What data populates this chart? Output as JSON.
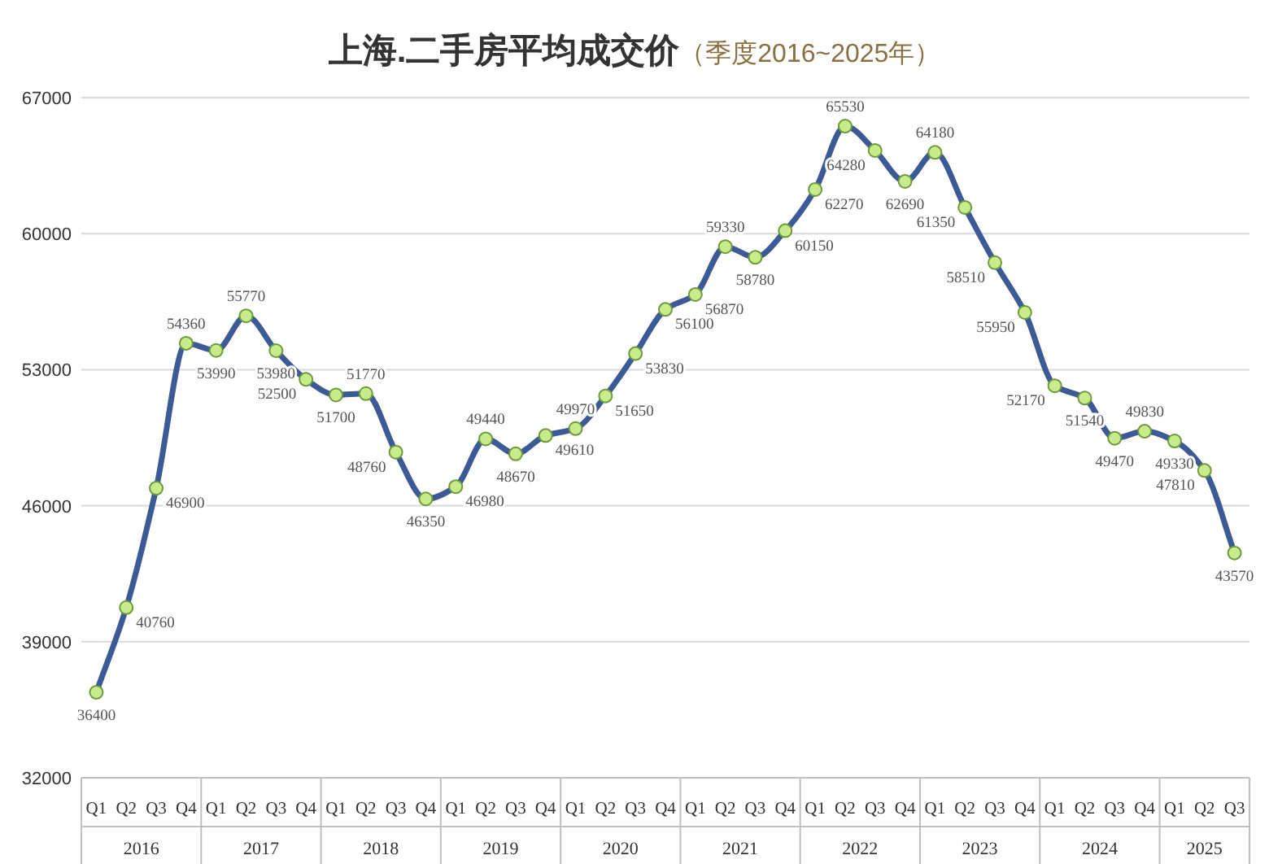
{
  "chart_data": {
    "type": "line",
    "title": "上海.二手房平均成交价",
    "subtitle": "（季度2016~2025年）",
    "categories": [
      "Q1",
      "Q2",
      "Q3",
      "Q4",
      "Q1",
      "Q2",
      "Q3",
      "Q4",
      "Q1",
      "Q2",
      "Q3",
      "Q4",
      "Q1",
      "Q2",
      "Q3",
      "Q4",
      "Q1",
      "Q2",
      "Q3",
      "Q4",
      "Q1",
      "Q2",
      "Q3",
      "Q4",
      "Q1",
      "Q2",
      "Q3",
      "Q4",
      "Q1",
      "Q2",
      "Q3",
      "Q4",
      "Q1",
      "Q2",
      "Q3",
      "Q4",
      "Q1",
      "Q2",
      "Q3"
    ],
    "annotations": [
      "2016",
      "2017",
      "2018",
      "2019",
      "2020",
      "2021",
      "2022",
      "2023",
      "2024",
      "2025"
    ],
    "series": [
      {
        "color": "#3b5a96",
        "values": [
          36400,
          40760,
          46900,
          54360,
          53990,
          55770,
          53980,
          52500,
          51700,
          51770,
          48760,
          46350,
          46980,
          49440,
          48670,
          49610,
          49970,
          51650,
          53830,
          56100,
          56870,
          59330,
          58780,
          60150,
          62270,
          65530,
          64280,
          62690,
          64180,
          61350,
          58510,
          55950,
          52170,
          51540,
          49470,
          49830,
          49330,
          47810,
          43570
        ]
      }
    ],
    "ylim": [
      32000,
      67000
    ],
    "yticks": [
      32000,
      39000,
      46000,
      53000,
      60000,
      67000
    ],
    "grid": "y",
    "marker": "circle",
    "line_style": "solid",
    "data_labels": true
  }
}
